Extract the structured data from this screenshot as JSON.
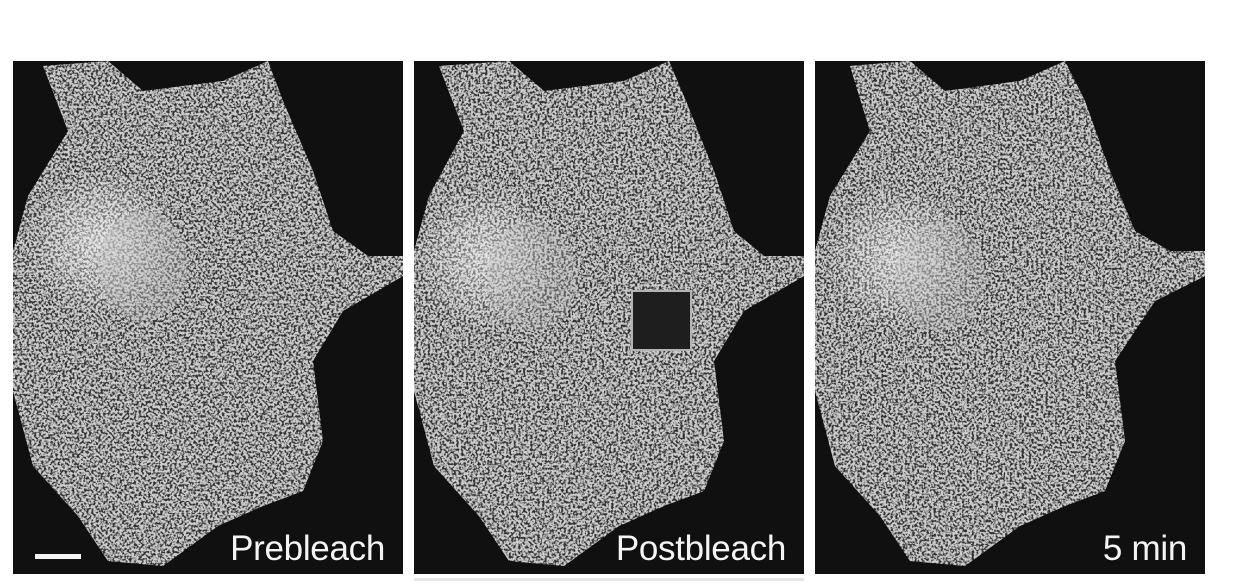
{
  "panels": [
    {
      "label": "Prebleach",
      "roi": "none"
    },
    {
      "label": "Postbleach",
      "roi": "bleached"
    },
    {
      "label": "5 min",
      "roi": "recovered"
    }
  ],
  "scale_bar": {
    "color": "#f4f4f4"
  },
  "colors": {
    "background": "#ffffff",
    "image_background": "#101010",
    "roi_bleached_fill": "#1e1e1e",
    "roi_outline": "#b4b4b4"
  }
}
